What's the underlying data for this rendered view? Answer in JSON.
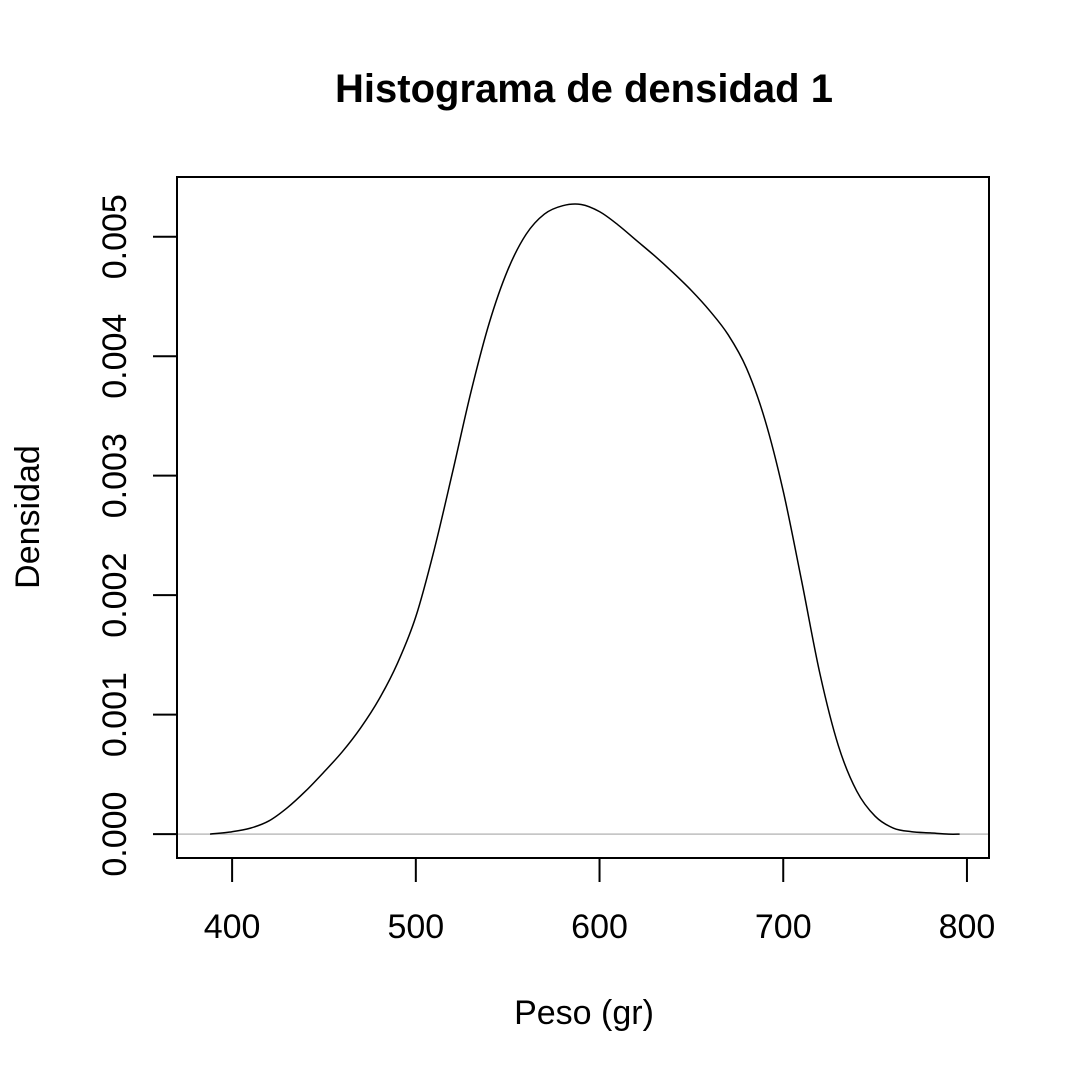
{
  "chart_data": {
    "type": "line",
    "title": "Histograma de densidad 1",
    "xlabel": "Peso (gr)",
    "ylabel": "Densidad",
    "xlim": [
      370,
      812
    ],
    "ylim": [
      -0.0002,
      0.0055
    ],
    "xticks": [
      400,
      500,
      600,
      700,
      800
    ],
    "xtick_labels": [
      "400",
      "500",
      "600",
      "700",
      "800"
    ],
    "yticks": [
      0,
      0.001,
      0.002,
      0.003,
      0.004,
      0.005
    ],
    "ytick_labels": [
      "0.000",
      "0.001",
      "0.002",
      "0.003",
      "0.004",
      "0.005"
    ],
    "grid": false,
    "baseline": 0,
    "colors": {
      "line": "#000000",
      "baseline": "#bebebe",
      "frame": "#000000"
    },
    "series": [
      {
        "x": [
          388,
          400,
          410,
          420,
          430,
          440,
          450,
          460,
          470,
          480,
          490,
          500,
          510,
          520,
          530,
          540,
          550,
          560,
          570,
          580,
          590,
          600,
          610,
          620,
          630,
          640,
          650,
          660,
          670,
          680,
          690,
          700,
          710,
          720,
          730,
          740,
          750,
          760,
          770,
          780,
          790,
          796
        ],
        "y": [
          0.0,
          2e-05,
          5e-05,
          0.00011,
          0.00022,
          0.00036,
          0.00052,
          0.00069,
          0.00089,
          0.00113,
          0.00143,
          0.00182,
          0.00238,
          0.00303,
          0.0037,
          0.00428,
          0.00472,
          0.00502,
          0.00519,
          0.00526,
          0.00527,
          0.00521,
          0.0051,
          0.00497,
          0.00484,
          0.0047,
          0.00455,
          0.00438,
          0.00418,
          0.0039,
          0.00347,
          0.00287,
          0.00212,
          0.00134,
          0.00074,
          0.00036,
          0.00015,
          5e-05,
          2e-05,
          1e-05,
          0.0,
          0.0
        ]
      }
    ]
  }
}
